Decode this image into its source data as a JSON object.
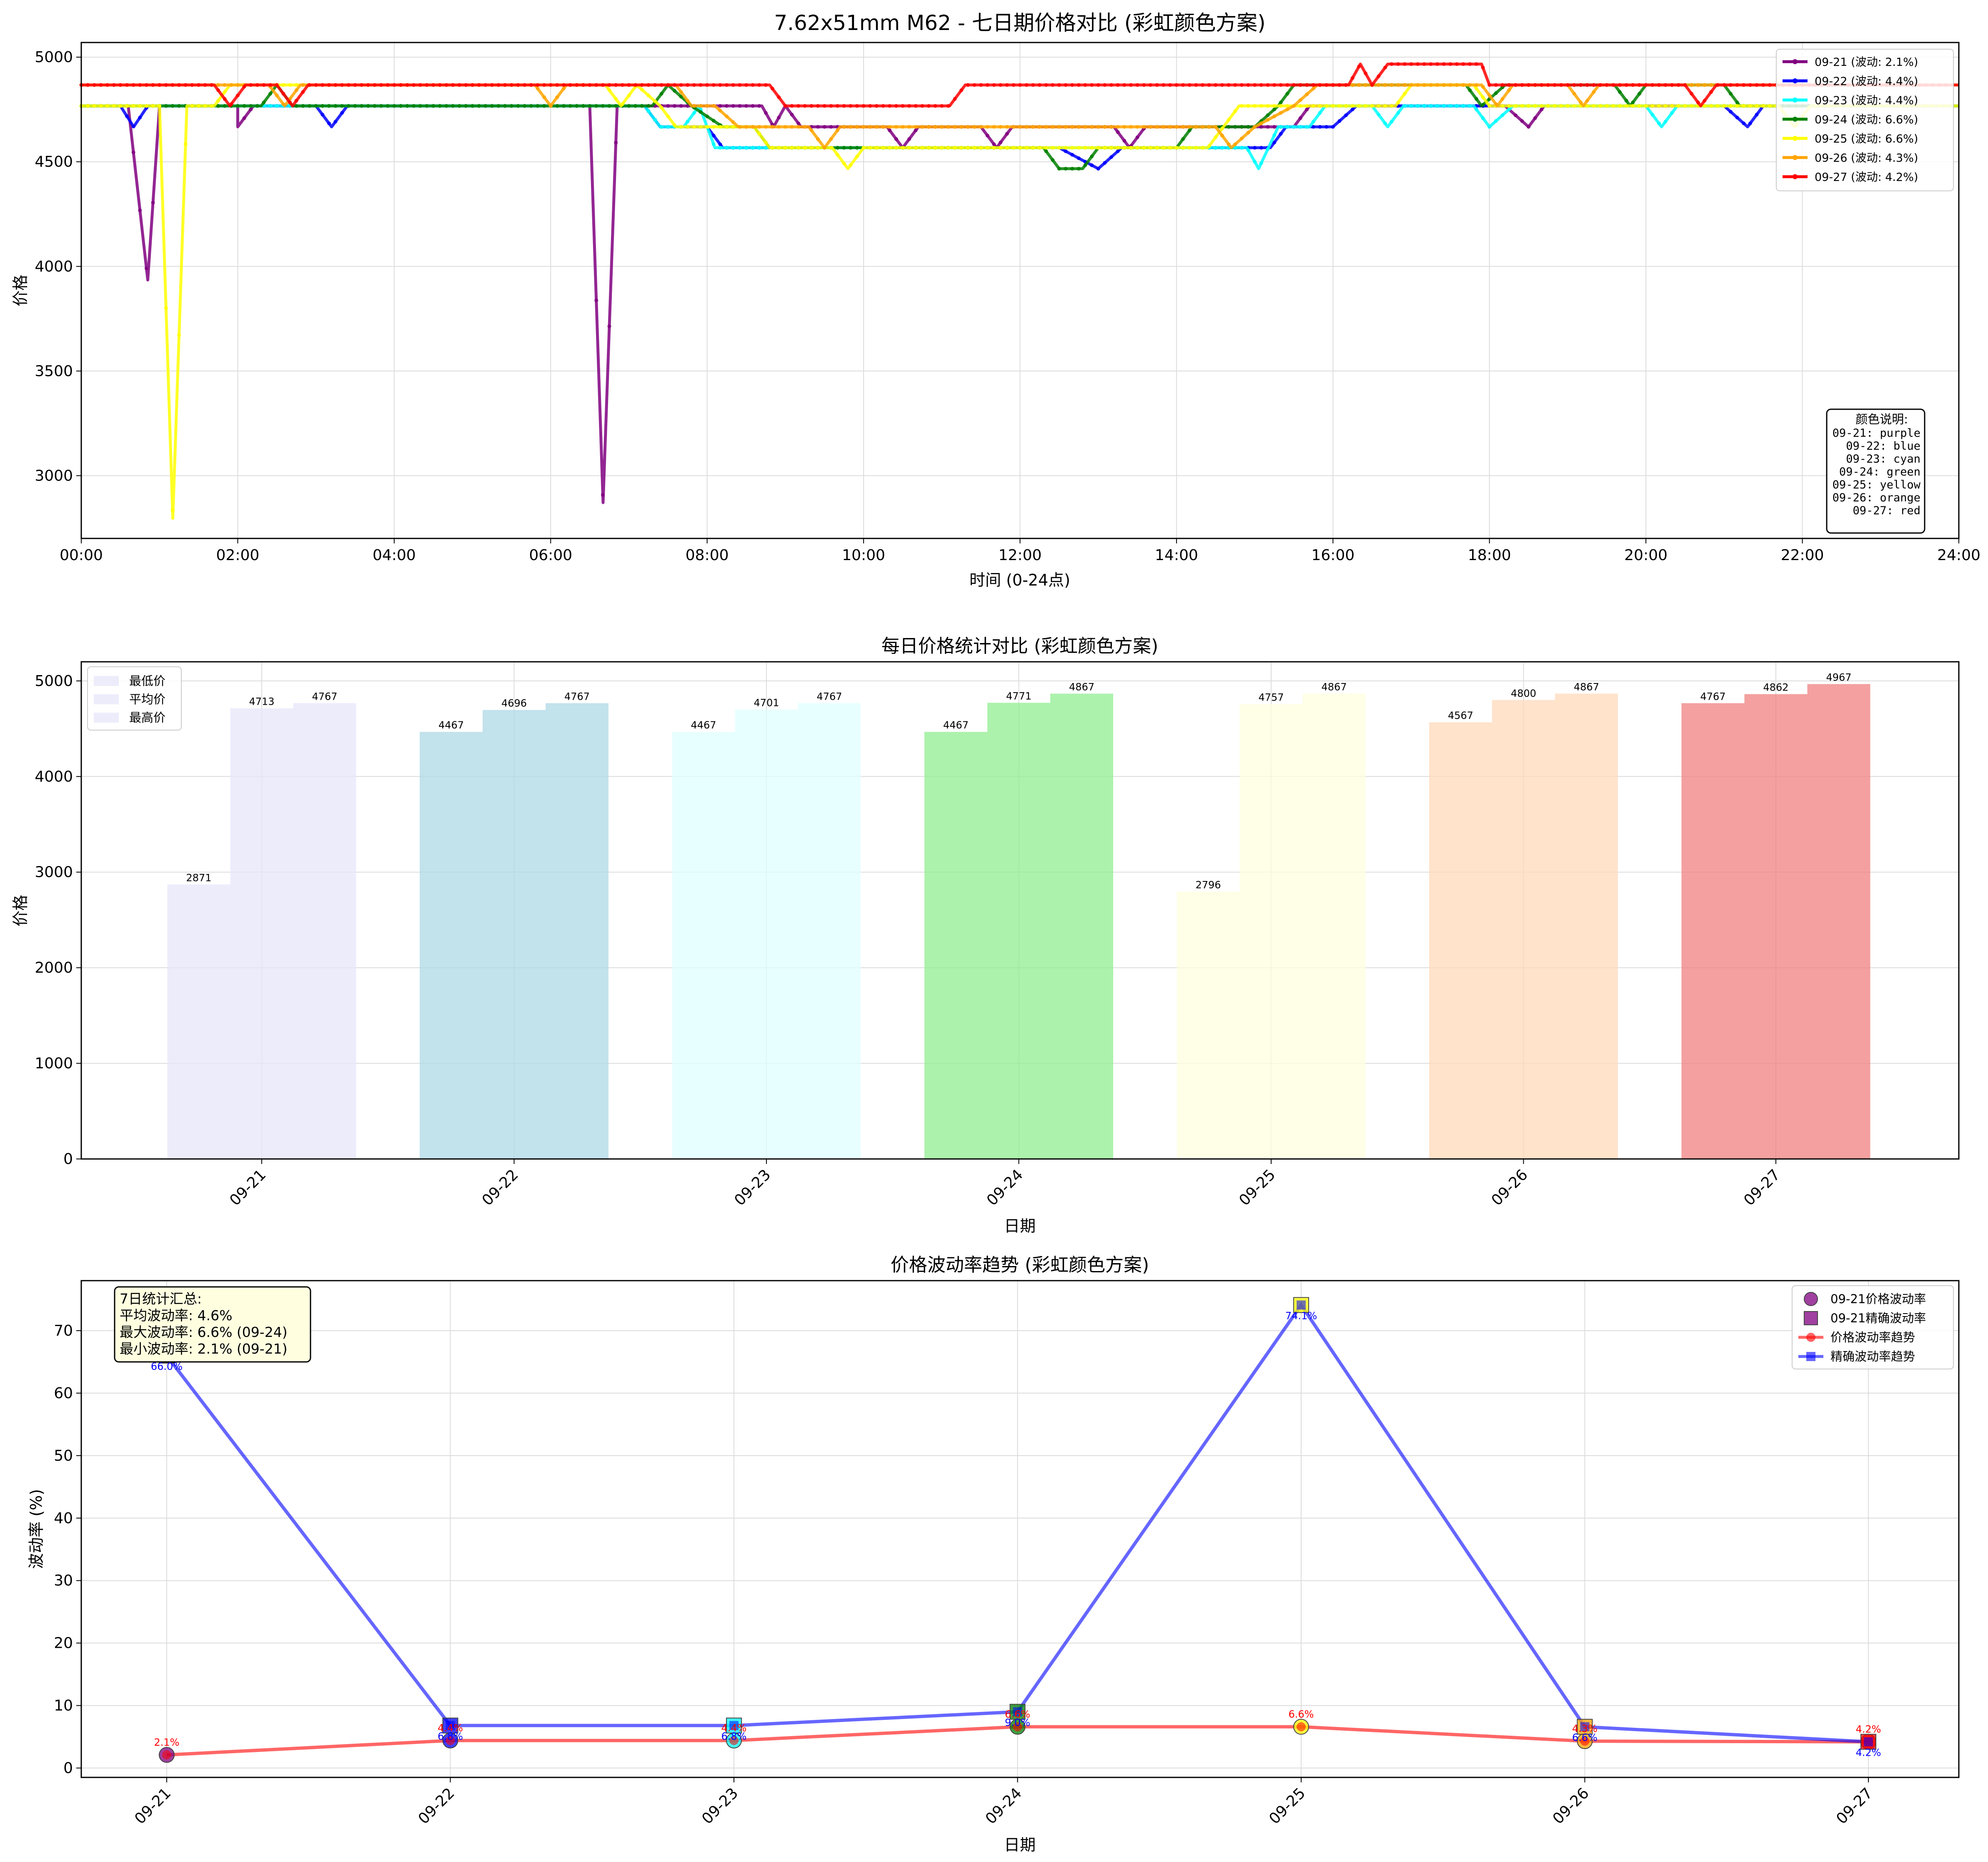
{
  "chart_data": [
    {
      "type": "line",
      "title": "7.62x51mm M62 - 七日期价格对比 (彩虹颜色方案)",
      "xlabel": "时间 (0-24点)",
      "ylabel": "价格",
      "xlim": [
        0,
        24
      ],
      "ylim": [
        2700,
        5070
      ],
      "xticks": [
        "00:00",
        "02:00",
        "04:00",
        "06:00",
        "08:00",
        "10:00",
        "12:00",
        "14:00",
        "16:00",
        "18:00",
        "20:00",
        "22:00",
        "24:00"
      ],
      "yticks": [
        3000,
        3500,
        4000,
        4500,
        5000
      ],
      "grid": true,
      "legend_position": "top-right",
      "color_note": {
        "title": "颜色说明:",
        "lines": [
          "09-21: purple",
          "09-22: blue",
          "09-23: cyan",
          "09-24: green",
          "09-25: yellow",
          "09-26: orange",
          "09-27: red"
        ]
      },
      "series": [
        {
          "name": "09-21 (波动: 2.1%)",
          "color": "#800080",
          "points": [
            [
              0,
              4767
            ],
            [
              0.6,
              4767
            ],
            [
              0.85,
              3935
            ],
            [
              1.0,
              4767
            ],
            [
              2.0,
              4767
            ],
            [
              2.0,
              4667
            ],
            [
              2.2,
              4767
            ],
            [
              6.5,
              4767
            ],
            [
              6.67,
              2871
            ],
            [
              6.85,
              4767
            ],
            [
              8.7,
              4767
            ],
            [
              8.85,
              4667
            ],
            [
              9.0,
              4767
            ],
            [
              9.2,
              4667
            ],
            [
              10.3,
              4667
            ],
            [
              10.5,
              4567
            ],
            [
              10.7,
              4667
            ],
            [
              11.5,
              4667
            ],
            [
              11.7,
              4567
            ],
            [
              11.9,
              4667
            ],
            [
              13.2,
              4667
            ],
            [
              13.4,
              4567
            ],
            [
              13.6,
              4667
            ],
            [
              15.5,
              4667
            ],
            [
              15.7,
              4767
            ],
            [
              18.2,
              4767
            ],
            [
              18.5,
              4667
            ],
            [
              18.7,
              4767
            ],
            [
              24,
              4767
            ]
          ]
        },
        {
          "name": "09-22 (波动: 4.4%)",
          "color": "#0000ff",
          "points": [
            [
              0,
              4767
            ],
            [
              0.5,
              4767
            ],
            [
              0.67,
              4667
            ],
            [
              0.85,
              4767
            ],
            [
              3.0,
              4767
            ],
            [
              3.2,
              4667
            ],
            [
              3.4,
              4767
            ],
            [
              7.2,
              4767
            ],
            [
              7.4,
              4667
            ],
            [
              8.0,
              4667
            ],
            [
              8.2,
              4567
            ],
            [
              12.5,
              4567
            ],
            [
              13.0,
              4467
            ],
            [
              13.3,
              4567
            ],
            [
              15.2,
              4567
            ],
            [
              15.4,
              4667
            ],
            [
              16.0,
              4667
            ],
            [
              16.3,
              4767
            ],
            [
              21.0,
              4767
            ],
            [
              21.3,
              4667
            ],
            [
              21.5,
              4767
            ],
            [
              24,
              4767
            ]
          ]
        },
        {
          "name": "09-23 (波动: 4.4%)",
          "color": "#00ffff",
          "points": [
            [
              0,
              4767
            ],
            [
              7.2,
              4767
            ],
            [
              7.4,
              4667
            ],
            [
              7.7,
              4667
            ],
            [
              7.9,
              4767
            ],
            [
              8.1,
              4567
            ],
            [
              14.7,
              4567
            ],
            [
              14.9,
              4567
            ],
            [
              15.05,
              4467
            ],
            [
              15.3,
              4667
            ],
            [
              15.7,
              4667
            ],
            [
              15.9,
              4767
            ],
            [
              16.5,
              4767
            ],
            [
              16.7,
              4667
            ],
            [
              16.9,
              4767
            ],
            [
              17.8,
              4767
            ],
            [
              18.0,
              4667
            ],
            [
              18.3,
              4767
            ],
            [
              20.0,
              4767
            ],
            [
              20.2,
              4667
            ],
            [
              20.4,
              4767
            ],
            [
              24,
              4767
            ]
          ]
        },
        {
          "name": "09-24 (波动: 6.6%)",
          "color": "#008000",
          "points": [
            [
              0,
              4767
            ],
            [
              2.3,
              4767
            ],
            [
              2.5,
              4867
            ],
            [
              2.7,
              4767
            ],
            [
              7.3,
              4767
            ],
            [
              7.5,
              4867
            ],
            [
              7.8,
              4767
            ],
            [
              8.2,
              4667
            ],
            [
              8.6,
              4667
            ],
            [
              8.8,
              4567
            ],
            [
              12.3,
              4567
            ],
            [
              12.5,
              4467
            ],
            [
              12.8,
              4467
            ],
            [
              13.0,
              4567
            ],
            [
              14.0,
              4567
            ],
            [
              14.2,
              4667
            ],
            [
              15.0,
              4667
            ],
            [
              15.3,
              4767
            ],
            [
              15.5,
              4867
            ],
            [
              17.7,
              4867
            ],
            [
              17.9,
              4767
            ],
            [
              18.2,
              4867
            ],
            [
              19.6,
              4867
            ],
            [
              19.8,
              4767
            ],
            [
              20.0,
              4867
            ],
            [
              21.0,
              4867
            ],
            [
              21.2,
              4767
            ],
            [
              24,
              4767
            ]
          ]
        },
        {
          "name": "09-25 (波动: 6.6%)",
          "color": "#ffff00",
          "points": [
            [
              0,
              4767
            ],
            [
              1.0,
              4767
            ],
            [
              1.17,
              2796
            ],
            [
              1.35,
              4767
            ],
            [
              1.7,
              4767
            ],
            [
              1.9,
              4867
            ],
            [
              6.7,
              4867
            ],
            [
              6.9,
              4767
            ],
            [
              7.1,
              4867
            ],
            [
              7.4,
              4767
            ],
            [
              7.6,
              4667
            ],
            [
              8.6,
              4667
            ],
            [
              8.8,
              4567
            ],
            [
              9.6,
              4567
            ],
            [
              9.8,
              4467
            ],
            [
              10.0,
              4567
            ],
            [
              14.4,
              4567
            ],
            [
              14.6,
              4667
            ],
            [
              14.8,
              4767
            ],
            [
              16.8,
              4767
            ],
            [
              17.0,
              4867
            ],
            [
              17.8,
              4867
            ],
            [
              18.0,
              4767
            ],
            [
              21.7,
              4767
            ],
            [
              21.9,
              4667
            ],
            [
              22.1,
              4767
            ],
            [
              24,
              4767
            ]
          ]
        },
        {
          "name": "09-26 (波动: 4.3%)",
          "color": "#ffa500",
          "points": [
            [
              0,
              4867
            ],
            [
              2.4,
              4867
            ],
            [
              2.6,
              4767
            ],
            [
              2.8,
              4867
            ],
            [
              5.8,
              4867
            ],
            [
              6.0,
              4767
            ],
            [
              6.2,
              4867
            ],
            [
              7.6,
              4867
            ],
            [
              7.8,
              4767
            ],
            [
              8.1,
              4767
            ],
            [
              8.4,
              4667
            ],
            [
              9.3,
              4667
            ],
            [
              9.5,
              4567
            ],
            [
              9.7,
              4667
            ],
            [
              14.5,
              4667
            ],
            [
              14.7,
              4567
            ],
            [
              15.0,
              4667
            ],
            [
              15.5,
              4767
            ],
            [
              15.8,
              4867
            ],
            [
              17.9,
              4867
            ],
            [
              18.1,
              4767
            ],
            [
              18.3,
              4867
            ],
            [
              19.0,
              4867
            ],
            [
              19.2,
              4767
            ],
            [
              19.4,
              4867
            ],
            [
              24,
              4867
            ]
          ]
        },
        {
          "name": "09-27 (波动: 4.2%)",
          "color": "#ff0000",
          "points": [
            [
              0,
              4867
            ],
            [
              1.7,
              4867
            ],
            [
              1.9,
              4767
            ],
            [
              2.1,
              4867
            ],
            [
              2.5,
              4867
            ],
            [
              2.7,
              4767
            ],
            [
              2.9,
              4867
            ],
            [
              8.8,
              4867
            ],
            [
              9.0,
              4767
            ],
            [
              11.1,
              4767
            ],
            [
              11.3,
              4867
            ],
            [
              16.2,
              4867
            ],
            [
              16.35,
              4967
            ],
            [
              16.5,
              4867
            ],
            [
              16.7,
              4967
            ],
            [
              17.9,
              4967
            ],
            [
              18.0,
              4867
            ],
            [
              20.5,
              4867
            ],
            [
              20.7,
              4767
            ],
            [
              20.9,
              4867
            ],
            [
              24,
              4867
            ]
          ]
        }
      ]
    },
    {
      "type": "bar",
      "title": "每日价格统计对比 (彩虹颜色方案)",
      "xlabel": "日期",
      "ylabel": "价格",
      "ylim": [
        0,
        5200
      ],
      "yticks": [
        0,
        1000,
        2000,
        3000,
        4000,
        5000
      ],
      "grid": true,
      "legend_position": "top-left",
      "categories": [
        "09-21",
        "09-22",
        "09-23",
        "09-24",
        "09-25",
        "09-26",
        "09-27"
      ],
      "bar_colors": [
        "#e6e6fa",
        "#add8e6",
        "#e0ffff",
        "#90ee90",
        "#ffffe0",
        "#ffdab9",
        "#f08080"
      ],
      "series": [
        {
          "name": "最低价",
          "values": [
            2871,
            4467,
            4467,
            4467,
            2796,
            4567,
            4767
          ]
        },
        {
          "name": "平均价",
          "values": [
            4713,
            4696,
            4701,
            4771,
            4757,
            4800,
            4862
          ]
        },
        {
          "name": "最高价",
          "values": [
            4767,
            4767,
            4767,
            4867,
            4867,
            4867,
            4967
          ]
        }
      ]
    },
    {
      "type": "line",
      "title": "价格波动率趋势 (彩虹颜色方案)",
      "xlabel": "日期",
      "ylabel": "波动率 (%)",
      "ylim": [
        -1.5,
        78
      ],
      "yticks": [
        0,
        10,
        20,
        30,
        40,
        50,
        60,
        70
      ],
      "grid": true,
      "legend_position": "top-right",
      "categories": [
        "09-21",
        "09-22",
        "09-23",
        "09-24",
        "09-25",
        "09-26",
        "09-27"
      ],
      "day_colors": [
        "#800080",
        "#0000ff",
        "#00ffff",
        "#008000",
        "#ffff00",
        "#ffa500",
        "#ff0000"
      ],
      "summary": {
        "lines": [
          "7日统计汇总:",
          "平均波动率: 4.6%",
          "最大波动率: 6.6% (09-24)",
          "最小波动率: 2.1% (09-21)"
        ]
      },
      "legend": [
        "09-21价格波动率",
        "09-21精确波动率",
        "价格波动率趋势",
        "精确波动率趋势"
      ],
      "series": [
        {
          "name": "价格波动率趋势",
          "color": "#ff0000",
          "values": [
            2.1,
            4.4,
            4.4,
            6.6,
            6.6,
            4.3,
            4.2
          ],
          "labels": [
            "2.1%",
            "4.4%",
            "4.4%",
            "6.6%",
            "6.6%",
            "4.3%",
            "4.2%"
          ]
        },
        {
          "name": "精确波动率趋势",
          "color": "#0000ff",
          "values": [
            66.0,
            6.8,
            6.8,
            9.0,
            74.1,
            6.6,
            4.2
          ],
          "labels": [
            "66.0%",
            "6.8%",
            "6.8%",
            "9.0%",
            "74.1%",
            "6.6%",
            "4.2%"
          ]
        }
      ]
    }
  ]
}
